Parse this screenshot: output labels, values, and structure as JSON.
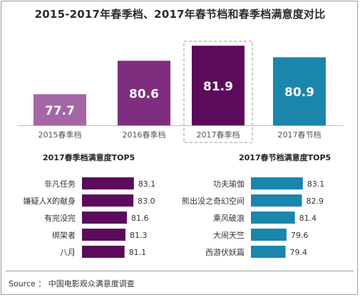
{
  "title": "2015-2017年春季档、2017年春节档和春季档满意度对比",
  "source": "Source ： 中国电影观众满意度调查",
  "colors": {
    "c2015": "#a566a6",
    "c2016": "#7e2d7f",
    "c2017spring": "#5b0a5c",
    "c2017festival": "#1a86ab"
  },
  "chart_data": [
    {
      "type": "bar",
      "title": "",
      "categories": [
        "2015春季档",
        "2016春季档",
        "2017春季档",
        "2017春节档"
      ],
      "values": [
        77.7,
        80.6,
        81.9,
        80.9
      ],
      "value_labels": [
        "77.7",
        "80.6",
        "81.9",
        "80.9"
      ],
      "highlighted": "2017春季档"
    },
    {
      "type": "bar",
      "orientation": "horizontal",
      "title": "2017春季档满意度TOP5",
      "categories": [
        "非凡任务",
        "嫌疑人X的献身",
        "有完没完",
        "绑架者",
        "八月"
      ],
      "values": [
        83.1,
        83.0,
        81.6,
        81.3,
        81.1
      ],
      "value_labels": [
        "83.1",
        "83.0",
        "81.6",
        "81.3",
        "81.1"
      ]
    },
    {
      "type": "bar",
      "orientation": "horizontal",
      "title": "2017春节档满意度TOP5",
      "categories": [
        "功夫瑜伽",
        "熊出没之奇幻空间",
        "乘风破浪",
        "大闹天竺",
        "西游伏妖篇"
      ],
      "values": [
        83.1,
        82.9,
        81.4,
        79.6,
        79.4
      ],
      "value_labels": [
        "83.1",
        "82.9",
        "81.4",
        "79.6",
        "79.4"
      ]
    }
  ]
}
